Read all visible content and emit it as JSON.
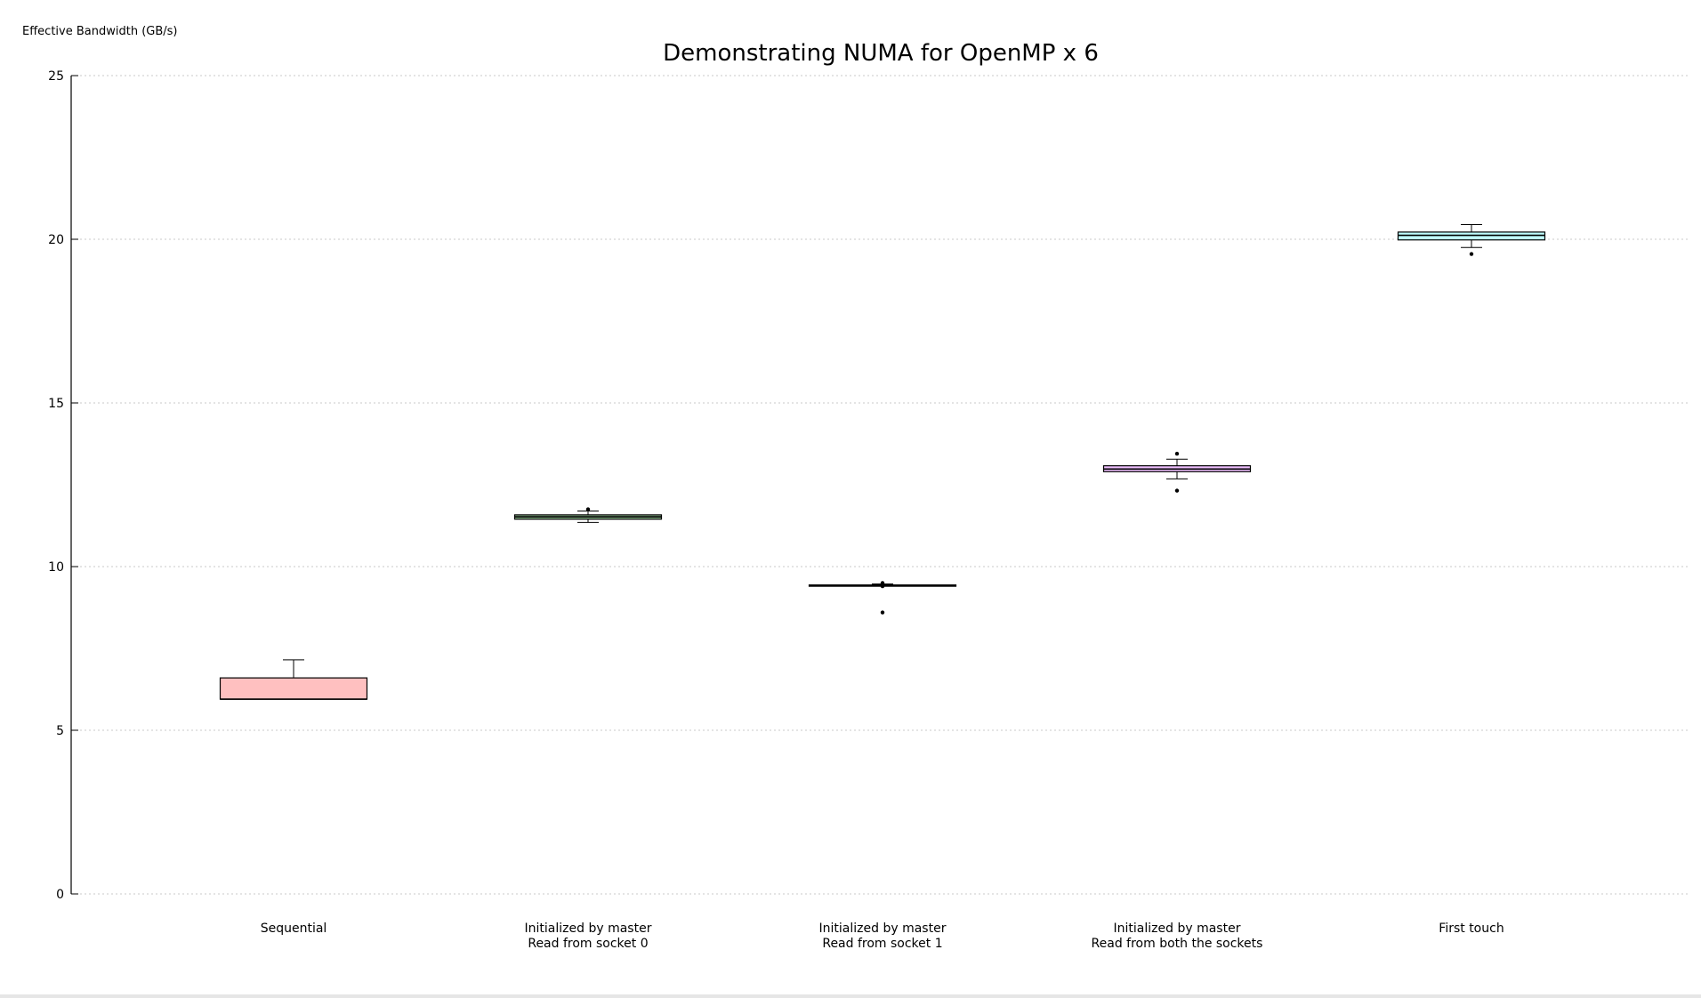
{
  "chart_data": {
    "type": "boxplot",
    "title": "Demonstrating NUMA for OpenMP x 6",
    "xlabel": "",
    "ylabel": "Effective Bandwidth (GB/s)",
    "ylim": [
      0,
      25
    ],
    "yticks": [
      0,
      5,
      10,
      15,
      20,
      25
    ],
    "grid": true,
    "categories": [
      [
        "Sequential"
      ],
      [
        "Initialized by master",
        "Read from socket 0"
      ],
      [
        "Initialized by master",
        "Read from socket 1"
      ],
      [
        "Initialized by master",
        "Read from both the sockets"
      ],
      [
        "First touch"
      ]
    ],
    "boxes": [
      {
        "q1": 5.95,
        "median": 5.95,
        "q3": 6.6,
        "whisker_low": 5.95,
        "whisker_high": 7.15,
        "outliers": [],
        "color": "#ffc0c0"
      },
      {
        "q1": 11.45,
        "median": 11.52,
        "q3": 11.58,
        "whisker_low": 11.35,
        "whisker_high": 11.7,
        "outliers": [
          11.75
        ],
        "color": "#90c090"
      },
      {
        "q1": 9.42,
        "median": 9.43,
        "q3": 9.44,
        "whisker_low": 9.42,
        "whisker_high": 9.47,
        "outliers": [
          9.5,
          9.4,
          8.6
        ],
        "color": "#a0a0a0"
      },
      {
        "q1": 12.9,
        "median": 12.98,
        "q3": 13.08,
        "whisker_low": 12.68,
        "whisker_high": 13.28,
        "outliers": [
          13.45,
          12.32
        ],
        "color": "#f0c0ff"
      },
      {
        "q1": 19.98,
        "median": 20.12,
        "q3": 20.22,
        "whisker_low": 19.75,
        "whisker_high": 20.45,
        "outliers": [
          19.55
        ],
        "color": "#c0ffff"
      }
    ]
  }
}
